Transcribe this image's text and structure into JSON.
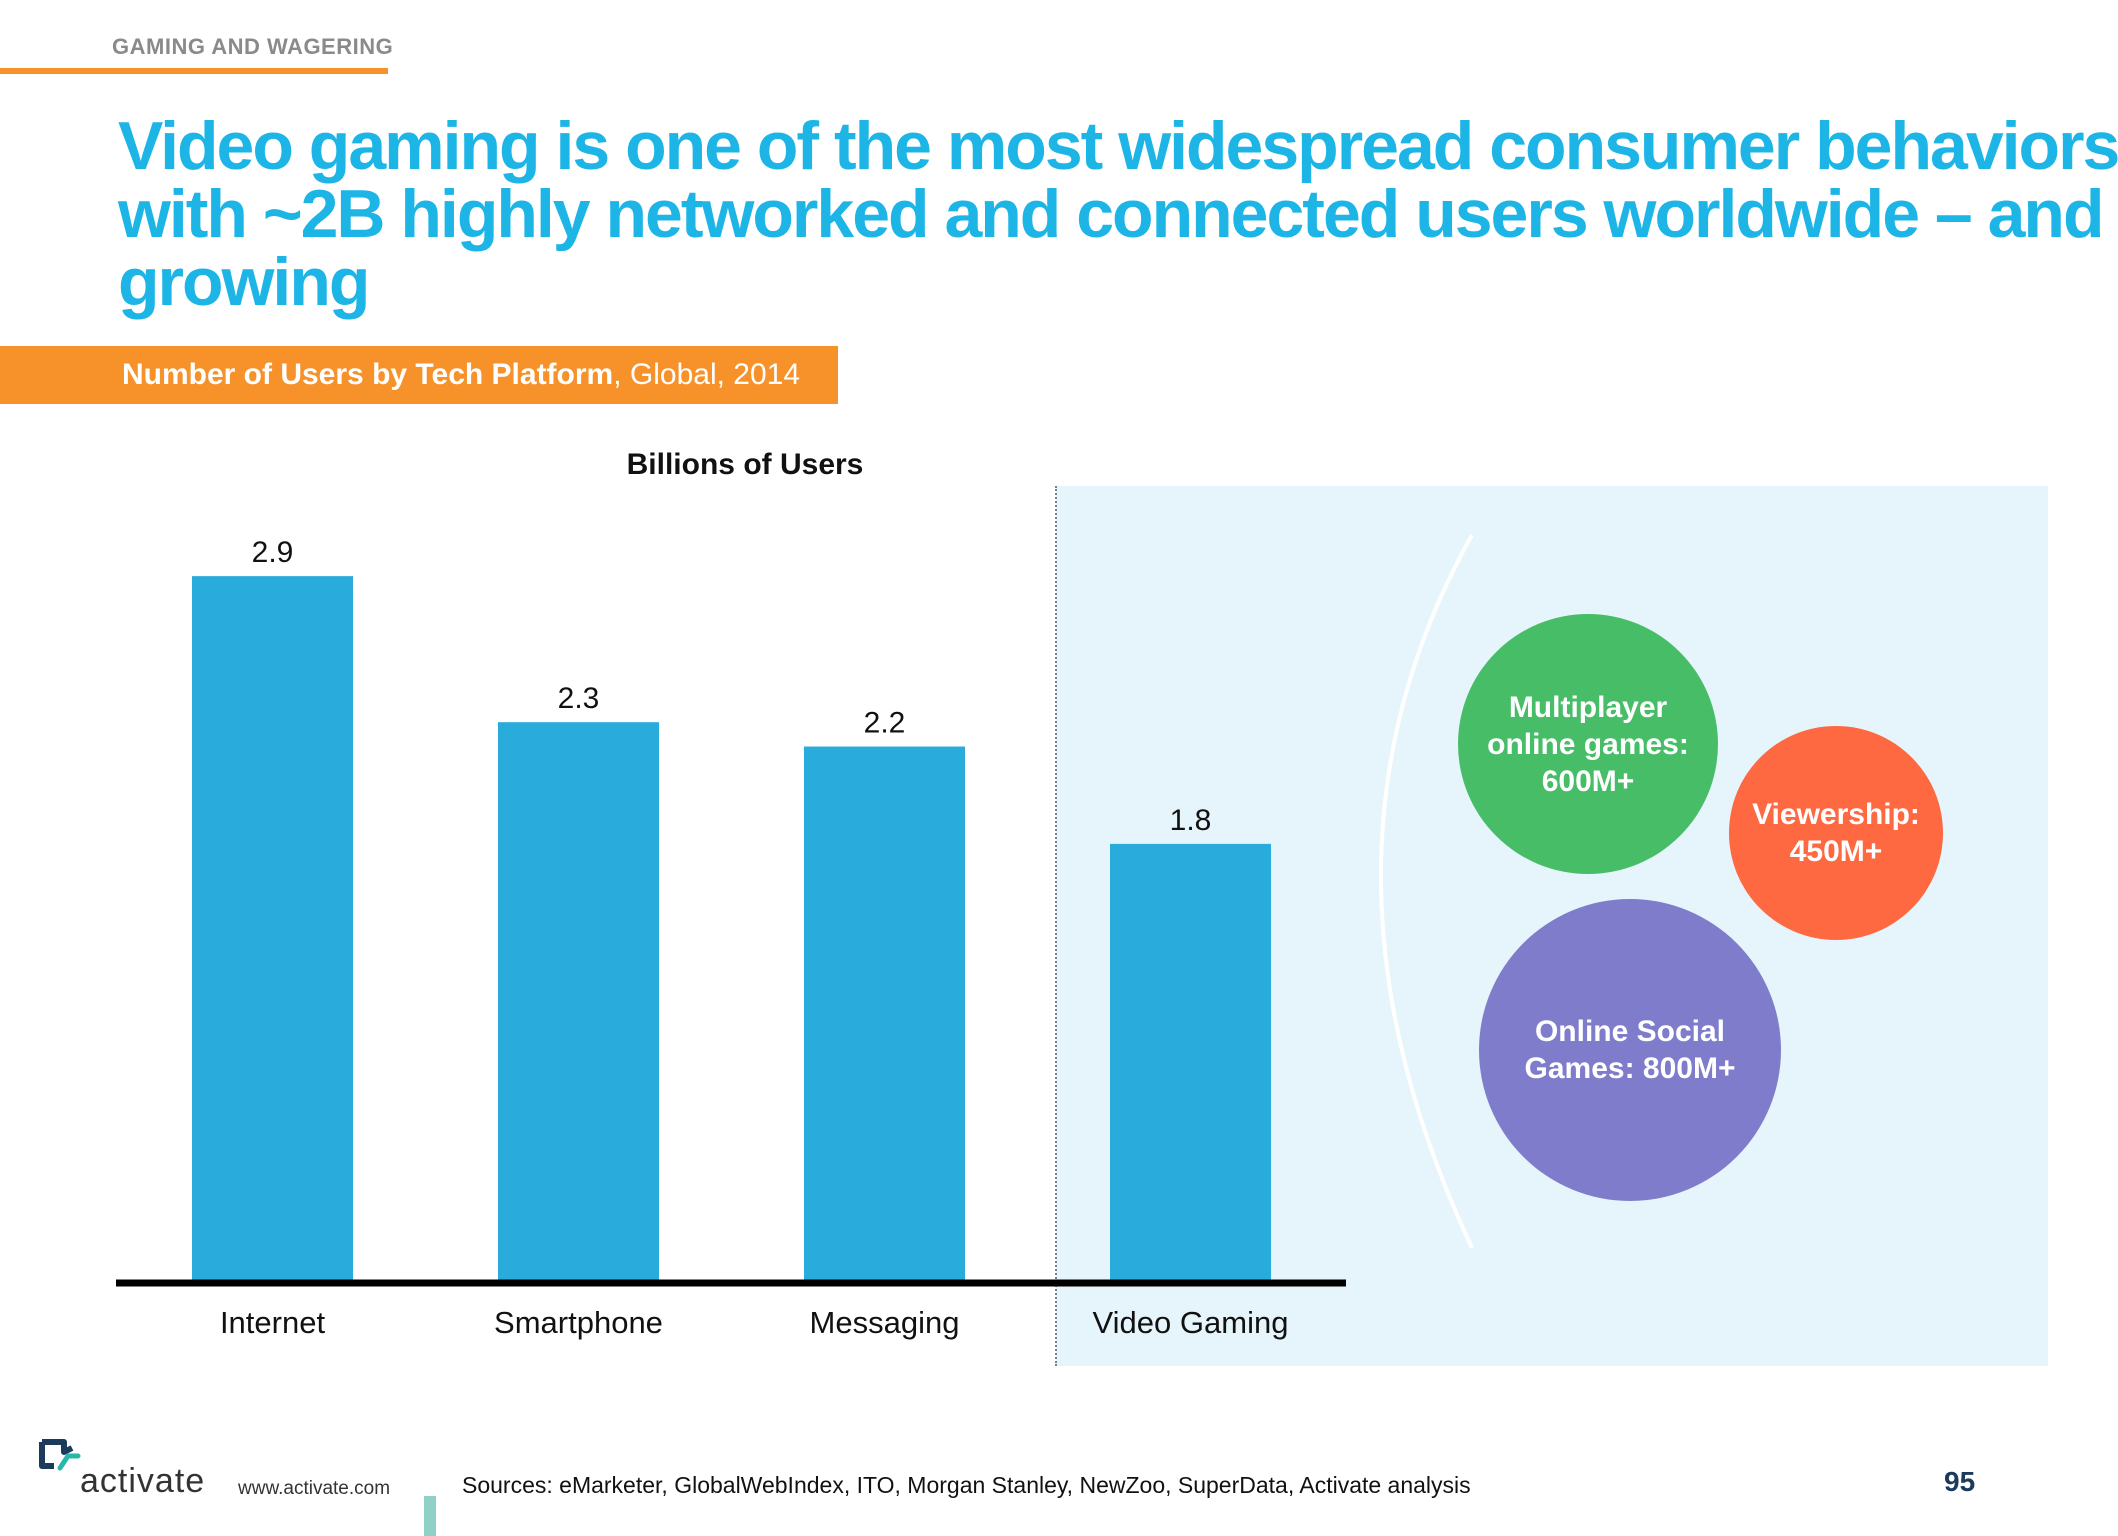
{
  "header": {
    "section": "GAMING AND WAGERING",
    "title_lines": [
      "Video gaming is one of the most widespread consumer behaviors",
      "with ~2B highly networked and connected users worldwide – and",
      "growing"
    ]
  },
  "banner": {
    "bold_text": "Number of Users by Tech Platform",
    "rest_text": ", Global, 2014"
  },
  "chart_data": {
    "type": "bar",
    "ylabel": "Billions of Users",
    "categories": [
      "Internet",
      "Smartphone",
      "Messaging",
      "Video Gaming"
    ],
    "values": [
      2.9,
      2.3,
      2.2,
      1.8
    ],
    "data_labels": [
      "2.9",
      "2.3",
      "2.2",
      "1.8"
    ],
    "ylim": [
      0,
      3.2
    ],
    "grid": false,
    "bar_color": "#29abdc",
    "highlight_category": "Video Gaming",
    "highlight_panel_color": "#e6f5fb"
  },
  "segments": {
    "multiplayer": [
      "Multiplayer",
      "online games:",
      "600M+"
    ],
    "viewership": [
      "Viewership:",
      "450M+"
    ],
    "social": [
      "Online Social",
      "Games: 800M+"
    ]
  },
  "footer": {
    "logo": "activate",
    "url": "www.activate.com",
    "sources": "Sources: eMarketer, GlobalWebIndex, ITO, Morgan Stanley, NewZoo, SuperData, Activate analysis",
    "page": "95"
  }
}
